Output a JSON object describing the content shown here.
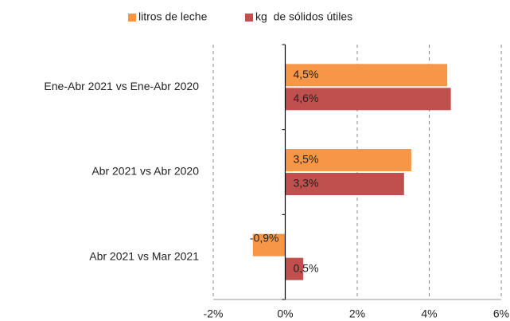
{
  "chart_data": {
    "type": "hbar",
    "categories": [
      "Ene-Abr 2021 vs Ene-Abr 2020",
      "Abr 2021 vs Abr 2020",
      "Abr 2021 vs Mar 2021"
    ],
    "series": [
      {
        "name": "litros de leche",
        "color": "#f79646",
        "values": [
          4.5,
          3.5,
          -0.9
        ],
        "value_labels": [
          "4,5%",
          "3,5%",
          "-0,9%"
        ]
      },
      {
        "name": "kg  de sólidos útiles",
        "color": "#c0504d",
        "values": [
          4.6,
          3.3,
          0.5
        ],
        "value_labels": [
          "4,6%",
          "3,3%",
          "0,5%"
        ]
      }
    ],
    "xlim": [
      -2,
      6
    ],
    "xticks": [
      {
        "value": -2,
        "label": "-2%"
      },
      {
        "value": 0,
        "label": "0%"
      },
      {
        "value": 2,
        "label": "2%"
      },
      {
        "value": 4,
        "label": "4%"
      },
      {
        "value": 6,
        "label": "6%"
      }
    ],
    "grid": true,
    "legend": "top"
  }
}
